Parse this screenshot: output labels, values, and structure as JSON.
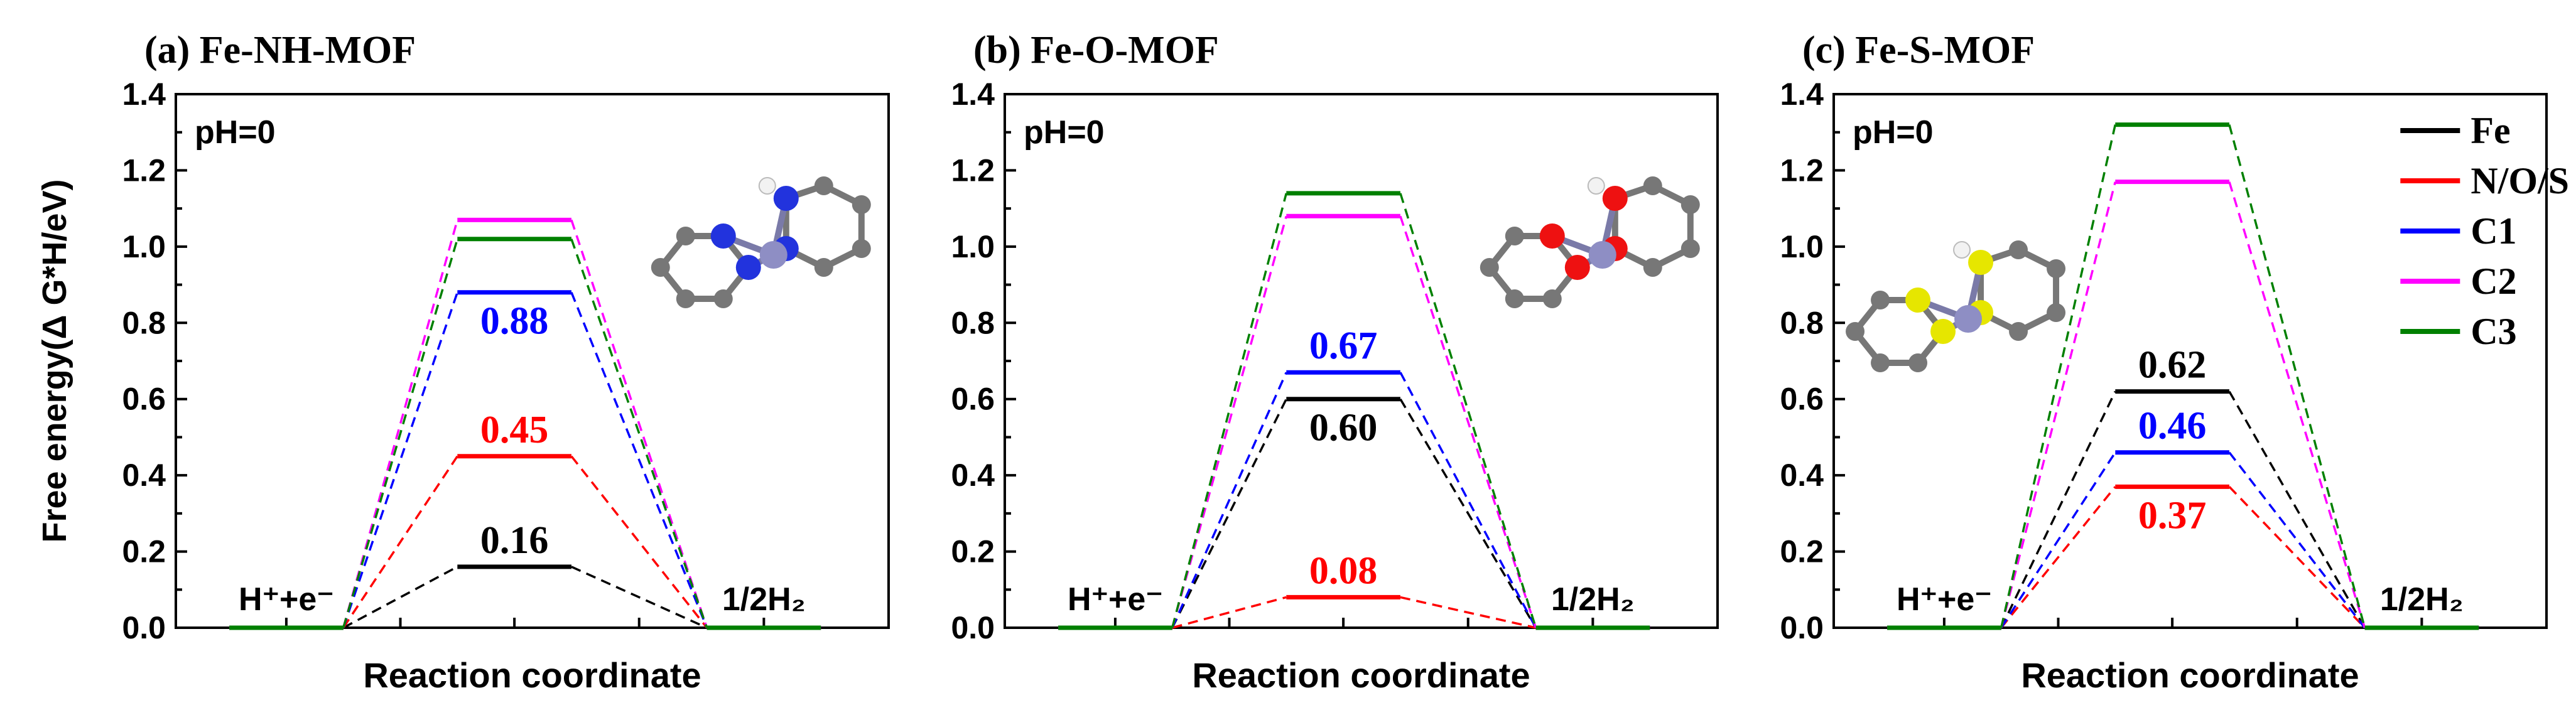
{
  "chart_data": [
    {
      "type": "line",
      "title": "(a) Fe-NH-MOF",
      "annotation": "pH=0",
      "xlabel": "Reaction coordinate",
      "ylabel": "Free energy(Δ G*H/eV)",
      "ylim": [
        0,
        1.4
      ],
      "yticks": [
        "0.0",
        "0.2",
        "0.4",
        "0.6",
        "0.8",
        "1.0",
        "1.2",
        "1.4"
      ],
      "states": [
        "H⁺+e⁻",
        "",
        "1/2H₂"
      ],
      "series": [
        {
          "name": "Fe",
          "color": "#000000",
          "values": [
            0,
            0.16,
            0
          ],
          "label": "0.16",
          "label_position": "above"
        },
        {
          "name": "N/O/S",
          "color": "#ff0000",
          "values": [
            0,
            0.45,
            0
          ],
          "label": "0.45",
          "label_position": "above"
        },
        {
          "name": "C1",
          "color": "#0000ff",
          "values": [
            0,
            0.88,
            0
          ],
          "label": "0.88",
          "label_position": "below"
        },
        {
          "name": "C2",
          "color": "#ff00ff",
          "values": [
            0,
            1.07,
            0
          ],
          "label": "",
          "label_position": "none"
        },
        {
          "name": "C3",
          "color": "#008000",
          "values": [
            0,
            1.02,
            0
          ],
          "label": "",
          "label_position": "none"
        }
      ]
    },
    {
      "type": "line",
      "title": "(b) Fe-O-MOF",
      "annotation": "pH=0",
      "xlabel": "Reaction coordinate",
      "ylabel": "",
      "ylim": [
        0,
        1.4
      ],
      "yticks": [
        "0.0",
        "0.2",
        "0.4",
        "0.6",
        "0.8",
        "1.0",
        "1.2",
        "1.4"
      ],
      "states": [
        "H⁺+e⁻",
        "",
        "1/2H₂"
      ],
      "series": [
        {
          "name": "Fe",
          "color": "#000000",
          "values": [
            0,
            0.6,
            0
          ],
          "label": "0.60",
          "label_position": "below"
        },
        {
          "name": "N/O/S",
          "color": "#ff0000",
          "values": [
            0,
            0.08,
            0
          ],
          "label": "0.08",
          "label_position": "above"
        },
        {
          "name": "C1",
          "color": "#0000ff",
          "values": [
            0,
            0.67,
            0
          ],
          "label": "0.67",
          "label_position": "above"
        },
        {
          "name": "C2",
          "color": "#ff00ff",
          "values": [
            0,
            1.08,
            0
          ],
          "label": "",
          "label_position": "none"
        },
        {
          "name": "C3",
          "color": "#008000",
          "values": [
            0,
            1.14,
            0
          ],
          "label": "",
          "label_position": "none"
        }
      ]
    },
    {
      "type": "line",
      "title": "(c) Fe-S-MOF",
      "annotation": "pH=0",
      "xlabel": "Reaction coordinate",
      "ylabel": "",
      "ylim": [
        0,
        1.4
      ],
      "yticks": [
        "0.0",
        "0.2",
        "0.4",
        "0.6",
        "0.8",
        "1.0",
        "1.2",
        "1.4"
      ],
      "states": [
        "H⁺+e⁻",
        "",
        "1/2H₂"
      ],
      "series": [
        {
          "name": "Fe",
          "color": "#000000",
          "values": [
            0,
            0.62,
            0
          ],
          "label": "0.62",
          "label_position": "above"
        },
        {
          "name": "N/O/S",
          "color": "#ff0000",
          "values": [
            0,
            0.37,
            0
          ],
          "label": "0.37",
          "label_position": "below"
        },
        {
          "name": "C1",
          "color": "#0000ff",
          "values": [
            0,
            0.46,
            0
          ],
          "label": "0.46",
          "label_position": "above"
        },
        {
          "name": "C2",
          "color": "#ff00ff",
          "values": [
            0,
            1.17,
            0
          ],
          "label": "",
          "label_position": "none"
        },
        {
          "name": "C3",
          "color": "#008000",
          "values": [
            0,
            1.32,
            0
          ],
          "label": "",
          "label_position": "none"
        }
      ],
      "legend": {
        "placement": "top-right",
        "entries": [
          {
            "name": "Fe",
            "color": "#000000"
          },
          {
            "name": "N/O/S",
            "color": "#ff0000"
          },
          {
            "name": "C1",
            "color": "#0000ff"
          },
          {
            "name": "C2",
            "color": "#ff00ff"
          },
          {
            "name": "C3",
            "color": "#008000"
          }
        ]
      }
    }
  ]
}
